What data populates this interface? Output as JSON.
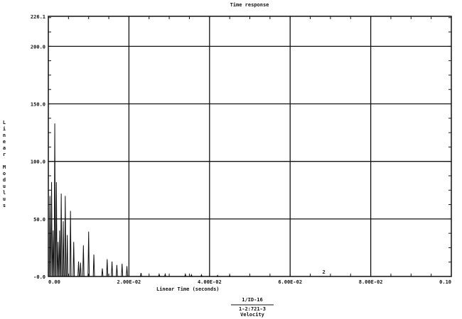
{
  "chart_data": {
    "type": "line",
    "title": "Time response",
    "xlabel": "Linear Time (seconds)",
    "ylabel": "Linear Modulus",
    "xlim": [
      0,
      0.1
    ],
    "ylim": [
      0,
      226.1
    ],
    "x_ticks": [
      "0.00",
      "2.00E-02",
      "4.00E-02",
      "6.00E-02",
      "8.00E-02",
      "0.10"
    ],
    "x_tick_values": [
      0,
      0.02,
      0.04,
      0.06,
      0.08,
      0.1
    ],
    "y_ticks": [
      "-0.0",
      "50.0",
      "100.0",
      "150.0",
      "200.0",
      "226.1"
    ],
    "y_tick_values": [
      0,
      50,
      100,
      150,
      200,
      226.1
    ],
    "grid": true,
    "annotation": "2",
    "annotation_x": 0.068,
    "footer": {
      "numerator": "1/ID-16",
      "denominator": "1-2:721-3",
      "quantity": "Velocity"
    },
    "series": [
      {
        "peaks_x": [
          0.0004,
          0.0008,
          0.0012,
          0.0016,
          0.002,
          0.0024,
          0.0028,
          0.0032,
          0.0037,
          0.0042,
          0.0047,
          0.0055,
          0.0063,
          0.0075,
          0.008,
          0.0087,
          0.01,
          0.0113,
          0.0134,
          0.0146,
          0.0158,
          0.017,
          0.0183,
          0.0195,
          0.023,
          0.0275,
          0.029,
          0.034,
          0.0355,
          0.038,
          0.042,
          0.045
        ],
        "peaks_y": [
          70,
          82,
          40,
          133,
          82,
          30,
          40,
          72,
          48,
          70,
          36,
          57,
          30,
          13,
          12,
          27,
          39,
          19,
          7,
          15,
          13,
          10,
          11,
          9,
          3,
          2,
          2,
          2,
          1.5,
          1.5,
          1,
          1
        ]
      }
    ]
  }
}
